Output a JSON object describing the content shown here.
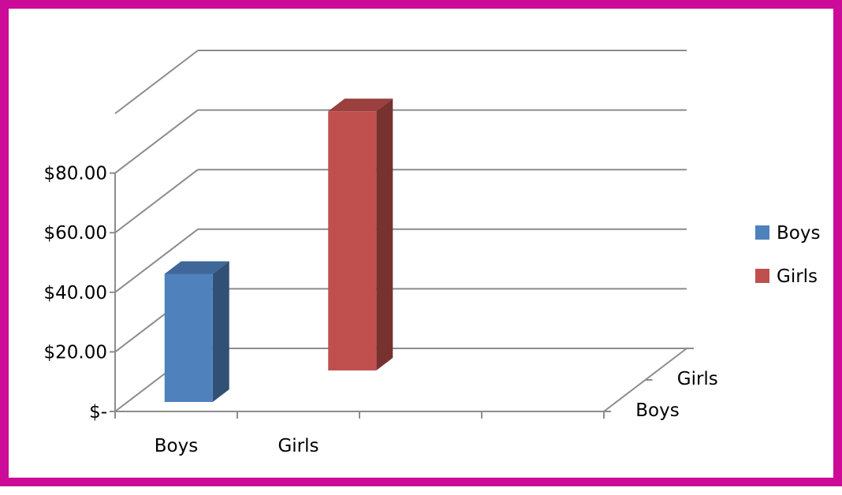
{
  "frame_color": "#cc0c98",
  "chart_data": {
    "type": "bar",
    "subtype": "3d-column",
    "title": "",
    "xlabel": "",
    "ylabel": "",
    "categories": [
      "Boys",
      "Girls"
    ],
    "depth_categories": [
      "Boys",
      "Girls"
    ],
    "y_ticks": [
      "$-",
      "$20.00",
      "$40.00",
      "$60.00",
      "$80.00"
    ],
    "ylim": [
      0,
      100
    ],
    "grid": true,
    "legend_position": "right",
    "series": [
      {
        "name": "Boys",
        "color": "#4f81bd",
        "values": [
          43,
          null
        ]
      },
      {
        "name": "Girls",
        "color": "#c0504d",
        "values": [
          null,
          87
        ]
      }
    ]
  }
}
